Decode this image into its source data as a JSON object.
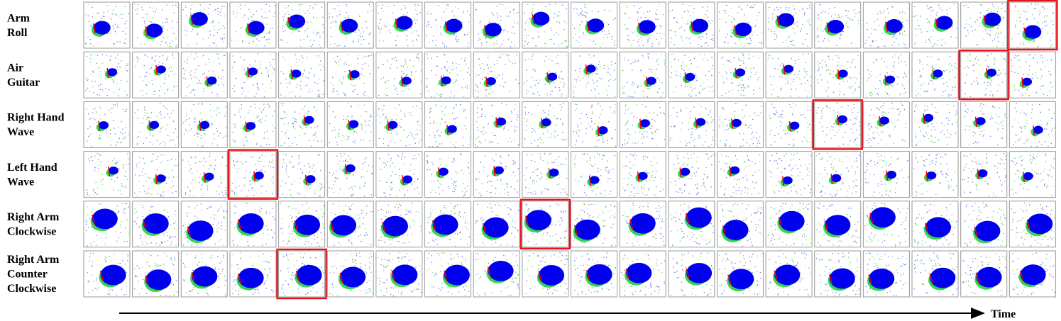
{
  "rows": [
    {
      "label_lines": [
        "Arm",
        "Roll"
      ],
      "highlighted_frame": 20
    },
    {
      "label_lines": [
        "Air",
        "Guitar"
      ],
      "highlighted_frame": 19
    },
    {
      "label_lines": [
        "Right Hand",
        "Wave"
      ],
      "highlighted_frame": 16
    },
    {
      "label_lines": [
        "Left Hand",
        "Wave"
      ],
      "highlighted_frame": 4
    },
    {
      "label_lines": [
        "Right Arm",
        "Clockwise"
      ],
      "highlighted_frame": 10
    },
    {
      "label_lines": [
        "Right Arm",
        "Counter",
        "Clockwise"
      ],
      "highlighted_frame": 5
    }
  ],
  "axis_label": "Time"
}
